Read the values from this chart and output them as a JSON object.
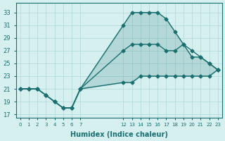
{
  "xlabel": "Humidex (Indice chaleur)",
  "bg_color": "#d6f0f0",
  "line_color": "#1a7070",
  "hours": [
    0,
    1,
    2,
    3,
    4,
    5,
    6,
    7,
    12,
    13,
    14,
    15,
    16,
    17,
    18,
    19,
    20,
    21,
    22,
    23
  ],
  "line1": [
    21,
    21,
    21,
    20,
    19,
    18,
    18,
    21,
    31,
    33,
    33,
    33,
    33,
    32,
    30,
    28,
    26,
    26,
    25,
    24
  ],
  "line2": [
    21,
    21,
    21,
    20,
    19,
    18,
    18,
    21,
    27,
    28,
    28,
    28,
    28,
    27,
    27,
    28,
    27,
    26,
    25,
    24
  ],
  "line3": [
    21,
    21,
    21,
    20,
    19,
    18,
    18,
    21,
    22,
    22,
    23,
    23,
    23,
    23,
    23,
    23,
    23,
    23,
    23,
    24
  ],
  "yticks": [
    17,
    19,
    21,
    23,
    25,
    27,
    29,
    31,
    33
  ],
  "ylim": [
    16.5,
    34.5
  ],
  "xlim": [
    -0.5,
    23.5
  ],
  "grid_color": "#b0d8d8"
}
